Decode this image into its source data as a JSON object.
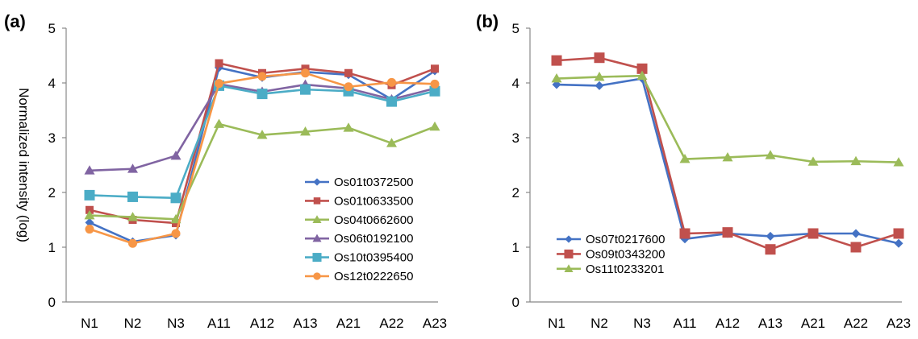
{
  "ylabel": "Normalized intensity (log)",
  "chart_data": [
    {
      "panel_label": "(a)",
      "type": "line",
      "categories": [
        "N1",
        "N2",
        "N3",
        "A11",
        "A12",
        "A13",
        "A21",
        "A22",
        "A23"
      ],
      "ylim": [
        0,
        5
      ],
      "yticks": [
        "0",
        "1",
        "2",
        "3",
        "4",
        "5"
      ],
      "grid": false,
      "legend_position": "bottom-right",
      "ylabel": "Normalized intensity (log)",
      "series": [
        {
          "name": "Os01t0372500",
          "color": "#4472C4",
          "marker": "diamond",
          "values": [
            1.45,
            1.1,
            1.22,
            4.28,
            4.1,
            4.2,
            4.15,
            3.7,
            4.22
          ]
        },
        {
          "name": "Os01t0633500",
          "color": "#C0504D",
          "marker": "square-small",
          "values": [
            1.68,
            1.5,
            1.44,
            4.36,
            4.18,
            4.26,
            4.18,
            3.96,
            4.26
          ]
        },
        {
          "name": "Os04t0662600",
          "color": "#9BBB59",
          "marker": "triangle",
          "values": [
            1.58,
            1.55,
            1.51,
            3.25,
            3.05,
            3.11,
            3.18,
            2.9,
            3.2
          ]
        },
        {
          "name": "Os06t0192100",
          "color": "#8064A2",
          "marker": "triangle",
          "values": [
            2.4,
            2.43,
            2.67,
            3.98,
            3.84,
            3.97,
            3.9,
            3.7,
            3.9
          ]
        },
        {
          "name": "Os10t0395400",
          "color": "#4BACC6",
          "marker": "square",
          "values": [
            1.95,
            1.92,
            1.9,
            3.95,
            3.8,
            3.88,
            3.85,
            3.66,
            3.85
          ]
        },
        {
          "name": "Os12t0222650",
          "color": "#F79646",
          "marker": "circle",
          "values": [
            1.33,
            1.07,
            1.25,
            3.99,
            4.12,
            4.18,
            3.93,
            4.01,
            3.98
          ]
        }
      ]
    },
    {
      "panel_label": "(b)",
      "type": "line",
      "categories": [
        "N1",
        "N2",
        "N3",
        "A11",
        "A12",
        "A13",
        "A21",
        "A22",
        "A23"
      ],
      "ylim": [
        0,
        5
      ],
      "yticks": [
        "0",
        "1",
        "2",
        "3",
        "4",
        "5"
      ],
      "grid": false,
      "legend_position": "bottom-left",
      "series": [
        {
          "name": "Os07t0217600",
          "color": "#4472C4",
          "marker": "diamond",
          "values": [
            3.97,
            3.95,
            4.08,
            1.15,
            1.25,
            1.2,
            1.25,
            1.25,
            1.07
          ]
        },
        {
          "name": "Os09t0343200",
          "color": "#C0504D",
          "marker": "square",
          "values": [
            4.41,
            4.46,
            4.26,
            1.25,
            1.27,
            0.96,
            1.25,
            1.0,
            1.25
          ]
        },
        {
          "name": "Os11t0233201",
          "color": "#9BBB59",
          "marker": "triangle",
          "values": [
            4.08,
            4.11,
            4.13,
            2.61,
            2.64,
            2.68,
            2.56,
            2.57,
            2.55
          ]
        }
      ]
    }
  ]
}
